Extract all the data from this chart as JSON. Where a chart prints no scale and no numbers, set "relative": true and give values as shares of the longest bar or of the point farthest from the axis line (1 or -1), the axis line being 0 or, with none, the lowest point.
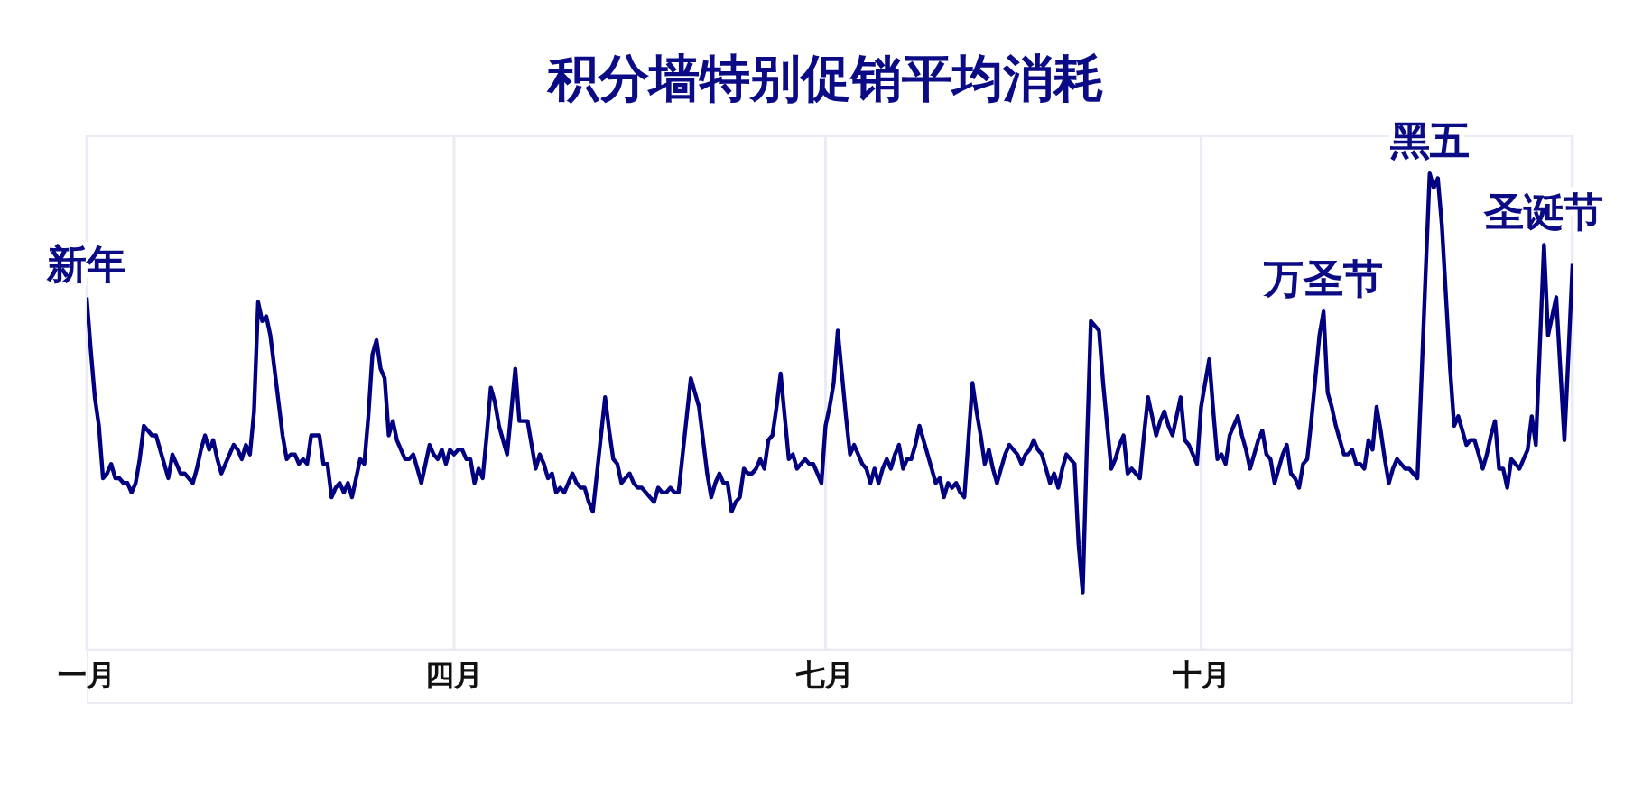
{
  "chart_data": {
    "type": "line",
    "title": "积分墙特别促销平均消耗",
    "relative": true,
    "color": "#000080",
    "grid": "x",
    "categories": [
      "一月",
      null,
      null,
      null,
      null,
      null,
      null,
      null,
      null,
      null,
      null,
      null,
      null,
      null,
      null,
      null,
      null,
      null,
      null,
      null,
      null,
      null,
      null,
      null,
      null,
      null,
      null,
      null,
      null,
      null,
      null,
      null,
      null,
      null,
      null,
      null,
      null,
      null,
      null,
      null,
      null,
      null,
      null,
      null,
      null,
      null,
      null,
      null,
      null,
      null,
      null,
      null,
      null,
      null,
      null,
      null,
      null,
      null,
      null,
      null,
      null,
      null,
      null,
      null,
      null,
      null,
      null,
      null,
      null,
      null,
      null,
      null,
      null,
      null,
      null,
      null,
      null,
      null,
      null,
      null,
      null,
      null,
      null,
      null,
      null,
      null,
      null,
      null,
      null,
      null,
      "四月",
      null,
      null,
      null,
      null,
      null,
      null,
      null,
      null,
      null,
      null,
      null,
      null,
      null,
      null,
      null,
      null,
      null,
      null,
      null,
      null,
      null,
      null,
      null,
      null,
      null,
      null,
      null,
      null,
      null,
      null,
      null,
      null,
      null,
      null,
      null,
      null,
      null,
      null,
      null,
      null,
      null,
      null,
      null,
      null,
      null,
      null,
      null,
      null,
      null,
      null,
      null,
      null,
      null,
      null,
      null,
      null,
      null,
      null,
      null,
      null,
      null,
      null,
      null,
      null,
      null,
      null,
      null,
      null,
      null,
      null,
      null,
      null,
      null,
      null,
      null,
      null,
      null,
      null,
      null,
      null,
      null,
      null,
      null,
      null,
      null,
      null,
      null,
      null,
      null,
      null,
      "七月",
      null,
      null,
      null,
      null,
      null,
      null,
      null,
      null,
      null,
      null,
      null,
      null,
      null,
      null,
      null,
      null,
      null,
      null,
      null,
      null,
      null,
      null,
      null,
      null,
      null,
      null,
      null,
      null,
      null,
      null,
      null,
      null,
      null,
      null,
      null,
      null,
      null,
      null,
      null,
      null,
      null,
      null,
      null,
      null,
      null,
      null,
      null,
      null,
      null,
      null,
      null,
      null,
      null,
      null,
      null,
      null,
      null,
      null,
      null,
      null,
      null,
      null,
      null,
      null,
      null,
      null,
      null,
      null,
      null,
      null,
      null,
      null,
      null,
      null,
      null,
      null,
      null,
      null,
      null,
      null,
      null,
      null,
      null,
      null,
      null,
      null,
      null,
      null,
      null,
      null,
      null,
      "十月",
      null,
      null,
      null,
      null,
      null,
      null,
      null,
      null,
      null,
      null,
      null,
      null,
      null,
      null,
      null,
      null,
      null,
      null,
      null,
      null,
      null,
      null,
      null,
      null,
      null,
      null,
      null,
      null,
      null,
      null,
      null,
      null,
      null,
      null,
      null,
      null,
      null,
      null,
      null,
      null,
      null,
      null,
      null,
      null,
      null,
      null,
      null,
      null,
      null,
      null,
      null,
      null,
      null,
      null,
      null,
      null,
      null,
      null,
      null,
      null,
      null,
      null,
      null,
      null,
      null,
      null,
      null,
      null,
      null,
      null,
      null,
      null,
      null,
      null,
      null,
      null,
      null,
      null,
      null,
      null,
      null,
      null,
      null,
      null,
      null,
      null,
      null,
      null,
      null,
      null,
      null
    ],
    "values": [
      0.74,
      0.63,
      0.53,
      0.47,
      0.36,
      0.37,
      0.39,
      0.36,
      0.36,
      0.35,
      0.35,
      0.33,
      0.35,
      0.4,
      0.47,
      0.46,
      0.45,
      0.45,
      0.42,
      0.39,
      0.36,
      0.41,
      0.39,
      0.37,
      0.37,
      0.36,
      0.35,
      0.38,
      0.42,
      0.45,
      0.42,
      0.44,
      0.4,
      0.37,
      0.39,
      0.41,
      0.43,
      0.42,
      0.4,
      0.43,
      0.41,
      0.5,
      0.73,
      0.69,
      0.7,
      0.66,
      0.59,
      0.52,
      0.45,
      0.4,
      0.41,
      0.41,
      0.39,
      0.4,
      0.39,
      0.45,
      0.45,
      0.45,
      0.39,
      0.39,
      0.32,
      0.34,
      0.35,
      0.33,
      0.35,
      0.32,
      0.36,
      0.4,
      0.39,
      0.49,
      0.62,
      0.65,
      0.59,
      0.57,
      0.45,
      0.48,
      0.44,
      0.42,
      0.4,
      0.4,
      0.41,
      0.38,
      0.35,
      0.39,
      0.43,
      0.41,
      0.4,
      0.42,
      0.39,
      0.42,
      0.41,
      0.42,
      0.42,
      0.4,
      0.4,
      0.35,
      0.38,
      0.36,
      0.45,
      0.55,
      0.52,
      0.47,
      0.44,
      0.41,
      0.5,
      0.59,
      0.48,
      0.48,
      0.48,
      0.43,
      0.38,
      0.41,
      0.39,
      0.36,
      0.37,
      0.33,
      0.34,
      0.33,
      0.35,
      0.37,
      0.35,
      0.34,
      0.34,
      0.31,
      0.29,
      0.37,
      0.45,
      0.53,
      0.46,
      0.4,
      0.39,
      0.35,
      0.36,
      0.37,
      0.35,
      0.34,
      0.34,
      0.33,
      0.32,
      0.31,
      0.34,
      0.33,
      0.33,
      0.34,
      0.33,
      0.33,
      0.41,
      0.49,
      0.57,
      0.54,
      0.51,
      0.44,
      0.37,
      0.32,
      0.35,
      0.37,
      0.35,
      0.35,
      0.29,
      0.31,
      0.32,
      0.38,
      0.37,
      0.37,
      0.38,
      0.4,
      0.38,
      0.44,
      0.45,
      0.51,
      0.58,
      0.49,
      0.4,
      0.41,
      0.38,
      0.39,
      0.4,
      0.39,
      0.39,
      0.37,
      0.35,
      0.47,
      0.51,
      0.56,
      0.67,
      0.58,
      0.49,
      0.41,
      0.43,
      0.41,
      0.39,
      0.38,
      0.35,
      0.38,
      0.35,
      0.38,
      0.4,
      0.38,
      0.41,
      0.43,
      0.38,
      0.4,
      0.4,
      0.43,
      0.47,
      0.44,
      0.41,
      0.38,
      0.35,
      0.36,
      0.32,
      0.35,
      0.34,
      0.35,
      0.33,
      0.32,
      0.44,
      0.56,
      0.5,
      0.45,
      0.39,
      0.42,
      0.38,
      0.35,
      0.38,
      0.41,
      0.43,
      0.42,
      0.41,
      0.39,
      0.41,
      0.42,
      0.44,
      0.42,
      0.41,
      0.38,
      0.35,
      0.37,
      0.34,
      0.38,
      0.41,
      0.4,
      0.39,
      0.22,
      0.12,
      0.42,
      0.69,
      0.68,
      0.67,
      0.56,
      0.47,
      0.38,
      0.4,
      0.43,
      0.45,
      0.37,
      0.38,
      0.37,
      0.36,
      0.45,
      0.53,
      0.49,
      0.45,
      0.48,
      0.5,
      0.47,
      0.45,
      0.49,
      0.53,
      0.44,
      0.43,
      0.41,
      0.39,
      0.51,
      0.56,
      0.61,
      0.5,
      0.4,
      0.41,
      0.39,
      0.45,
      0.47,
      0.49,
      0.45,
      0.42,
      0.38,
      0.41,
      0.44,
      0.46,
      0.41,
      0.4,
      0.35,
      0.38,
      0.41,
      0.43,
      0.37,
      0.36,
      0.34,
      0.39,
      0.4,
      0.48,
      0.57,
      0.66,
      0.71,
      0.54,
      0.51,
      0.47,
      0.44,
      0.41,
      0.41,
      0.42,
      0.39,
      0.39,
      0.38,
      0.44,
      0.42,
      0.51,
      0.46,
      0.4,
      0.35,
      0.38,
      0.4,
      0.39,
      0.38,
      0.38,
      0.37,
      0.36,
      0.57,
      0.79,
      1.0,
      0.97,
      0.99,
      0.89,
      0.74,
      0.59,
      0.47,
      0.49,
      0.46,
      0.43,
      0.44,
      0.44,
      0.41,
      0.38,
      0.41,
      0.45,
      0.48,
      0.38,
      0.38,
      0.34,
      0.4,
      0.39,
      0.38,
      0.4,
      0.42,
      0.49,
      0.43,
      0.64,
      0.85,
      0.66,
      0.7,
      0.74,
      0.59,
      0.44,
      0.62,
      0.81
    ],
    "annotations": [
      {
        "text": "新年",
        "y": 0.74
      },
      {
        "text": "万圣节",
        "y": 0.71
      },
      {
        "text": "黑五",
        "y": 1.0
      },
      {
        "text": "圣诞节",
        "y": 0.85
      }
    ]
  }
}
